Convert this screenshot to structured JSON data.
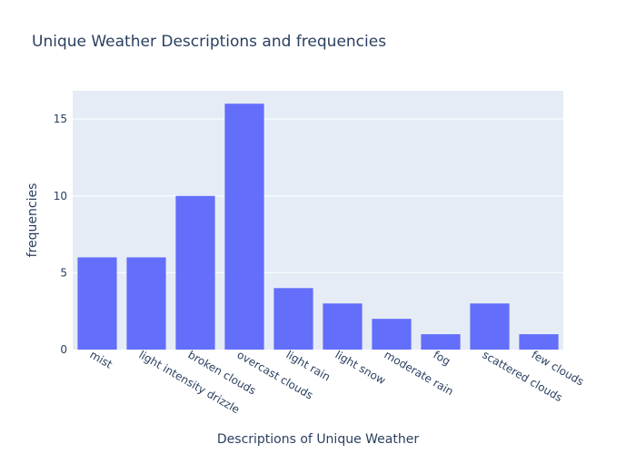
{
  "chart_data": {
    "type": "bar",
    "title": "Unique Weather Descriptions and frequencies",
    "xlabel": "Descriptions of Unique Weather",
    "ylabel": "frequencies",
    "categories": [
      "mist",
      "light intensity drizzle",
      "broken clouds",
      "overcast clouds",
      "light rain",
      "light snow",
      "moderate rain",
      "fog",
      "scattered clouds",
      "few clouds"
    ],
    "values": [
      6,
      6,
      10,
      16,
      4,
      3,
      2,
      1,
      3,
      1
    ],
    "ylim": [
      0,
      16.84
    ],
    "yticks": [
      0,
      5,
      10,
      15
    ],
    "grid": true,
    "colors": {
      "bar": "#636efa",
      "plot_bg": "#e5ecf6",
      "grid": "#ffffff",
      "text": "#2a3f5f"
    }
  }
}
